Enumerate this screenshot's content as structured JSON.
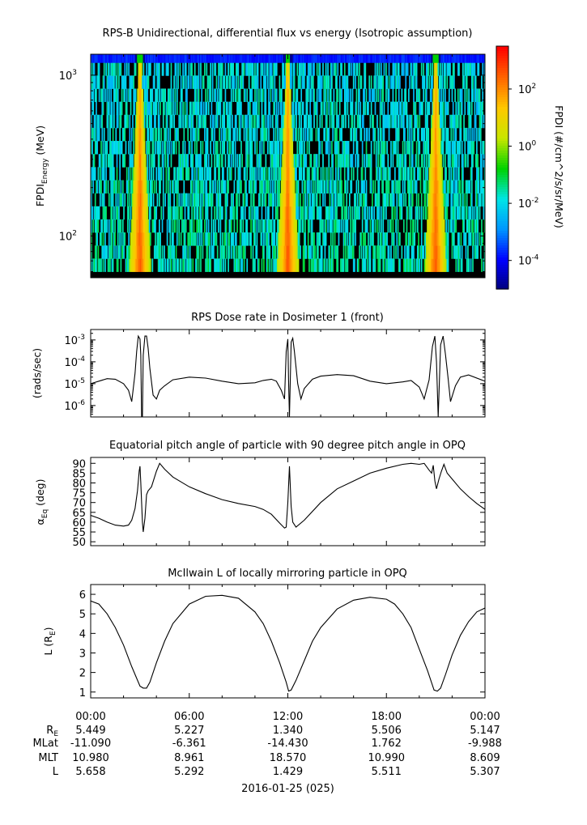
{
  "chart_data": [
    {
      "type": "heatmap",
      "title": "RPS-B  Unidirectional, differential flux vs energy (Isotropic assumption)",
      "ylabel_main": "FPDI",
      "ylabel_sub": "Energy",
      "ylabel_tail": " (MeV)",
      "yscale": "log",
      "ylim": [
        55,
        1350
      ],
      "yticks": [
        {
          "label": "10",
          "exp": "3",
          "value": 1000
        },
        {
          "label": "10",
          "exp": "2",
          "value": 100
        }
      ],
      "energy_channel_count": 16,
      "time_bin_count": 400,
      "xlim_hours": [
        0,
        24
      ],
      "peak_times_hours": [
        3.0,
        12.0,
        21.0
      ],
      "colorbar": {
        "label": "FPDI (#/cm^2/s/sr/MeV)",
        "scale": "log",
        "range_exp": [
          -5,
          3.5
        ],
        "ticks": [
          {
            "label": "10",
            "exp": "2",
            "value_exp": 2
          },
          {
            "label": "10",
            "exp": "0",
            "value_exp": 0
          },
          {
            "label": "10",
            "exp": "-2",
            "value_exp": -2
          },
          {
            "label": "10",
            "exp": "-4",
            "value_exp": -4
          }
        ],
        "colors": [
          "#00007a",
          "#0000ff",
          "#0096ff",
          "#00e6e6",
          "#00d200",
          "#c8e600",
          "#ffc800",
          "#ff6400",
          "#ff0000"
        ]
      }
    },
    {
      "type": "line",
      "title": "RPS  Dose rate in Dosimeter 1 (front)",
      "ylabel": "(rads/sec)",
      "yscale": "log",
      "ylim": [
        3e-07,
        0.003
      ],
      "yticks": [
        {
          "label": "10",
          "exp": "-3",
          "value": 0.001
        },
        {
          "label": "10",
          "exp": "-4",
          "value": 0.0001
        },
        {
          "label": "10",
          "exp": "-5",
          "value": 1e-05
        },
        {
          "label": "10",
          "exp": "-6",
          "value": 1e-06
        }
      ],
      "series": [
        {
          "x": [
            0,
            0.5,
            1.0,
            1.5,
            2.0,
            2.3,
            2.5,
            2.7,
            2.8,
            2.9,
            3.0,
            3.05,
            3.1,
            3.15,
            3.2,
            3.3,
            3.4,
            3.5,
            3.6,
            3.8,
            4.0,
            4.2,
            4.5,
            5.0,
            6.0,
            7.0,
            8.0,
            9.0,
            10.0,
            10.5,
            11.0,
            11.3,
            11.6,
            11.8,
            11.9,
            12.0,
            12.05,
            12.1,
            12.2,
            12.3,
            12.4,
            12.6,
            12.8,
            13.0,
            13.5,
            14.0,
            15.0,
            16.0,
            17.0,
            18.0,
            19.0,
            19.5,
            20.0,
            20.3,
            20.6,
            20.8,
            20.95,
            21.05,
            21.15,
            21.3,
            21.45,
            21.6,
            21.75,
            21.9,
            22.2,
            22.5,
            23.0,
            24.0
          ],
          "y": [
            1e-05,
            1.3e-05,
            1.7e-05,
            1.6e-05,
            1e-05,
            5e-06,
            1.5e-06,
            3e-05,
            0.0003,
            0.0015,
            0.0011,
            0.0002,
            3e-07,
            3e-07,
            0.0002,
            0.0015,
            0.0015,
            0.0004,
            5e-05,
            3e-06,
            2e-06,
            5e-06,
            8e-06,
            1.5e-05,
            2e-05,
            1.8e-05,
            1.3e-05,
            1e-05,
            1.1e-05,
            1.4e-05,
            1.6e-05,
            1.3e-05,
            5e-06,
            2e-06,
            0.0003,
            0.0011,
            1e-05,
            3e-07,
            0.0008,
            0.0012,
            0.0003,
            1e-05,
            2e-06,
            6e-06,
            1.6e-05,
            2.2e-05,
            2.6e-05,
            2.3e-05,
            1.3e-05,
            1e-05,
            1.2e-05,
            1.4e-05,
            7e-06,
            2e-06,
            1.5e-05,
            0.0005,
            0.0015,
            0.0001,
            3e-07,
            0.0006,
            0.0015,
            0.0002,
            2e-05,
            1.5e-06,
            8e-06,
            2e-05,
            2.5e-05,
            1.3e-05
          ]
        }
      ]
    },
    {
      "type": "line",
      "title": "Equatorial pitch angle of particle with 90 degree pitch angle in OPQ",
      "ylabel_main": "α",
      "ylabel_sub": "Eq",
      "ylabel_tail": " (deg)",
      "ylim": [
        48,
        93
      ],
      "yticks": [
        90,
        85,
        80,
        75,
        70,
        65,
        60,
        55,
        50
      ],
      "series": [
        {
          "x": [
            0,
            0.5,
            1.0,
            1.5,
            2.0,
            2.3,
            2.5,
            2.7,
            2.85,
            2.95,
            3.0,
            3.05,
            3.15,
            3.2,
            3.3,
            3.4,
            3.5,
            3.7,
            4.0,
            4.2,
            4.5,
            5.0,
            6.0,
            7.0,
            8.0,
            9.0,
            10.0,
            10.5,
            11.0,
            11.5,
            11.8,
            11.9,
            12.0,
            12.1,
            12.2,
            12.3,
            12.5,
            13.0,
            14.0,
            15.0,
            16.0,
            17.0,
            18.0,
            19.0,
            19.5,
            20.0,
            20.3,
            20.6,
            20.75,
            20.85,
            20.95,
            21.05,
            21.2,
            21.35,
            21.5,
            21.7,
            22.0,
            22.5,
            23.0,
            23.5,
            24.0
          ],
          "y": [
            63.5,
            62.0,
            60.0,
            58.5,
            58.0,
            58.5,
            61.0,
            67.0,
            76.0,
            86.0,
            88.5,
            80.0,
            60.0,
            55.0,
            62.0,
            74.0,
            76.0,
            78.0,
            86.0,
            90.0,
            87.0,
            83.0,
            78.0,
            74.5,
            71.5,
            69.5,
            68.0,
            66.5,
            64.0,
            59.5,
            57.0,
            57.5,
            70.0,
            88.5,
            68.0,
            60.0,
            57.5,
            61.0,
            70.0,
            77.0,
            81.0,
            85.0,
            87.5,
            89.5,
            90.0,
            89.5,
            90.0,
            86.5,
            85.0,
            89.0,
            81.0,
            77.0,
            82.0,
            86.0,
            89.5,
            85.0,
            82.0,
            77.0,
            73.0,
            69.5,
            66.5
          ]
        }
      ]
    },
    {
      "type": "line",
      "title": "McIlwain L of locally mirroring particle in OPQ",
      "ylabel_main": "L (R",
      "ylabel_sub": "E",
      "ylabel_tail": ")",
      "ylim": [
        0.7,
        6.5
      ],
      "yticks": [
        6,
        5,
        4,
        3,
        2,
        1
      ],
      "series": [
        {
          "x": [
            0,
            0.5,
            1.0,
            1.5,
            2.0,
            2.5,
            3.0,
            3.2,
            3.4,
            3.6,
            4.0,
            4.5,
            5.0,
            6.0,
            7.0,
            8.0,
            9.0,
            10.0,
            10.5,
            11.0,
            11.5,
            11.9,
            12.05,
            12.2,
            12.5,
            13.0,
            13.5,
            14.0,
            15.0,
            16.0,
            17.0,
            18.0,
            18.5,
            19.0,
            19.5,
            20.0,
            20.5,
            20.9,
            21.1,
            21.3,
            21.6,
            22.0,
            22.5,
            23.0,
            23.5,
            24.0
          ],
          "y": [
            5.66,
            5.5,
            5.0,
            4.3,
            3.4,
            2.3,
            1.3,
            1.2,
            1.2,
            1.5,
            2.5,
            3.6,
            4.5,
            5.5,
            5.9,
            5.95,
            5.8,
            5.1,
            4.5,
            3.6,
            2.5,
            1.5,
            1.05,
            1.1,
            1.6,
            2.6,
            3.6,
            4.3,
            5.25,
            5.7,
            5.85,
            5.75,
            5.5,
            5.0,
            4.3,
            3.2,
            2.1,
            1.1,
            1.05,
            1.2,
            1.9,
            2.9,
            3.9,
            4.6,
            5.1,
            5.3
          ]
        }
      ]
    }
  ],
  "x_axis": {
    "tick_labels": [
      "00:00",
      "06:00",
      "12:00",
      "18:00",
      "00:00"
    ],
    "tick_hours": [
      0,
      6,
      12,
      18,
      24
    ],
    "date_label": "2016-01-25 (025)"
  },
  "ephemeris": {
    "rows": [
      {
        "name": "R",
        "sub": "E",
        "values": [
          "5.449",
          "5.227",
          "1.340",
          "5.506",
          "5.147"
        ]
      },
      {
        "name": "MLat",
        "sub": "",
        "values": [
          "-11.090",
          "-6.361",
          "-14.430",
          "1.762",
          "-9.988"
        ]
      },
      {
        "name": "MLT",
        "sub": "",
        "values": [
          "10.980",
          "8.961",
          "18.570",
          "10.990",
          "8.609"
        ]
      },
      {
        "name": "L",
        "sub": "",
        "values": [
          "5.658",
          "5.292",
          "1.429",
          "5.511",
          "5.307"
        ]
      }
    ]
  }
}
